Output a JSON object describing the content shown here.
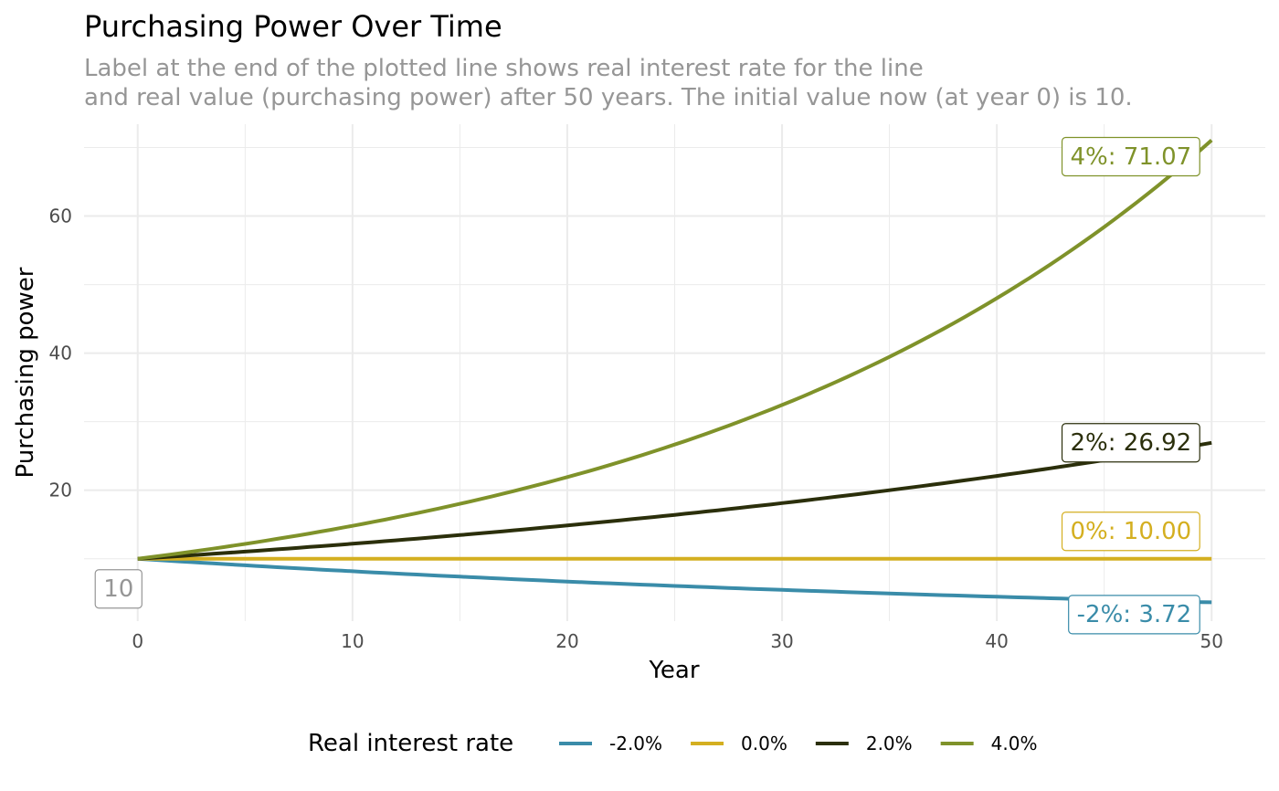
{
  "chart_data": {
    "type": "line",
    "title": "Purchasing Power Over Time",
    "subtitle_lines": [
      "Label at the end of the plotted line shows real interest rate for the line",
      "and real value (purchasing power) after 50 years. The initial value now (at year 0) is 10."
    ],
    "xlabel": "Year",
    "ylabel": "Purchasing power",
    "xlim": [
      -2.5,
      52.5
    ],
    "ylim": [
      0.9,
      73.4
    ],
    "x_ticks": [
      0,
      10,
      20,
      30,
      40,
      50
    ],
    "y_ticks": [
      20,
      40,
      60
    ],
    "grid": true,
    "initial_value": 10,
    "initial_label": "10",
    "legend": {
      "title": "Real interest rate",
      "position": "bottom"
    },
    "series": [
      {
        "name": "-2.0%",
        "rate": -0.02,
        "color": "#3a8ca9",
        "end_label": "-2%: 3.72",
        "end_value": 3.72
      },
      {
        "name": "0.0%",
        "rate": 0.0,
        "color": "#d4af20",
        "end_label": "0%: 10.00",
        "end_value": 10.0
      },
      {
        "name": "2.0%",
        "rate": 0.02,
        "color": "#2b2f0b",
        "end_label": "2%: 26.92",
        "end_value": 26.92
      },
      {
        "name": "4.0%",
        "rate": 0.04,
        "color": "#7f922a",
        "end_label": "4%: 71.07",
        "end_value": 71.07
      }
    ]
  }
}
